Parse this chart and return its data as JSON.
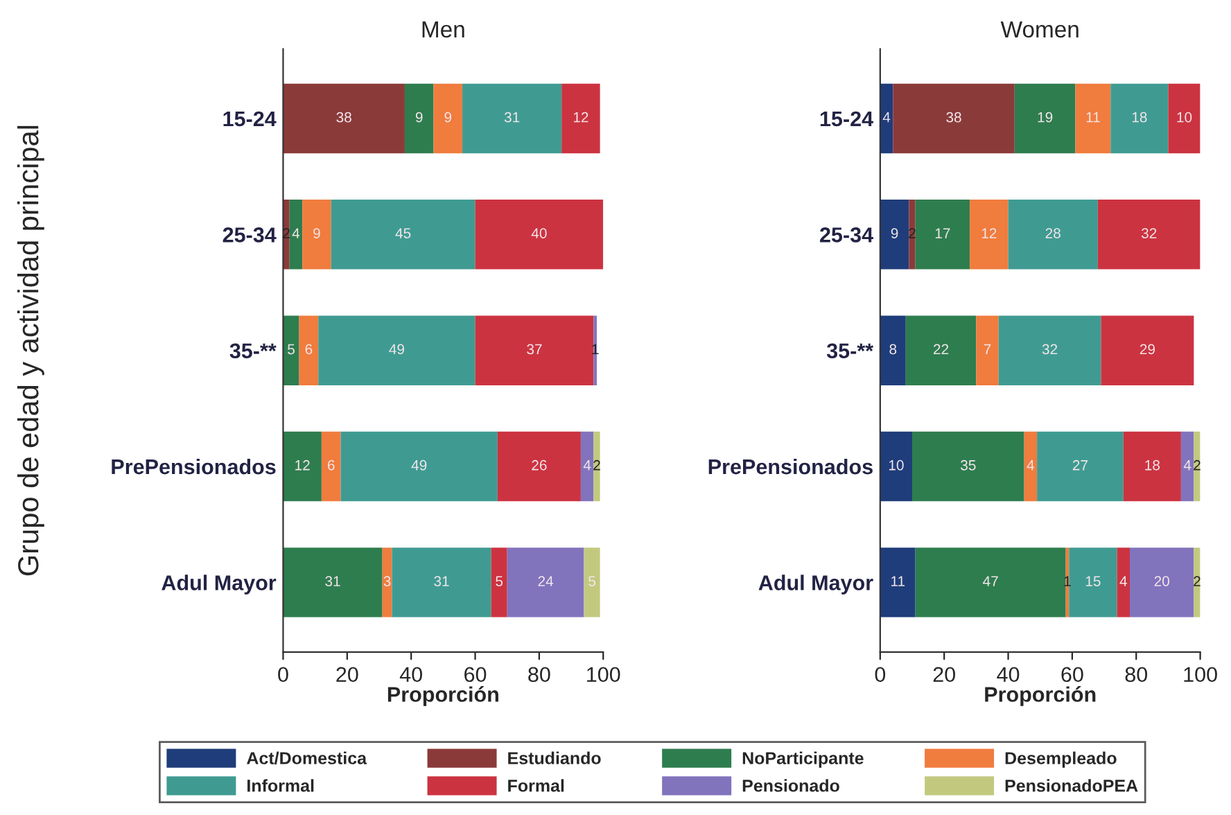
{
  "chart_data": [
    {
      "type": "bar",
      "title": "Men",
      "xlabel": "Proporción",
      "ylabel": "Grupo de edad y actividad principal",
      "orientation": "horizontal",
      "stacked": true,
      "xlim": [
        0,
        100
      ],
      "xticks": [
        0,
        20,
        40,
        60,
        80,
        100
      ],
      "grid": false,
      "categories": [
        "15-24",
        "25-34",
        "35-**",
        "PrePensionados",
        "Adul Mayor"
      ],
      "series": [
        {
          "color": "#8b3a3a",
          "values": [
            38,
            2,
            0,
            0,
            0
          ],
          "value_labels": [
            "38",
            "2",
            null,
            null,
            null
          ]
        },
        {
          "color": "#2e7d4f",
          "values": [
            9,
            4,
            5,
            12,
            31
          ],
          "value_labels": [
            "9",
            "4",
            "5",
            "12",
            "31"
          ]
        },
        {
          "color": "#f07c3e",
          "values": [
            9,
            9,
            6,
            6,
            3
          ],
          "value_labels": [
            "9",
            "9",
            "6",
            "6",
            "3"
          ]
        },
        {
          "color": "#3f9b92",
          "values": [
            31,
            45,
            49,
            49,
            31
          ],
          "value_labels": [
            "31",
            "45",
            "49",
            "49",
            "31"
          ]
        },
        {
          "color": "#cc3340",
          "values": [
            12,
            40,
            37,
            26,
            5
          ],
          "value_labels": [
            "12",
            "40",
            "37",
            "26",
            "5"
          ]
        },
        {
          "color": "#8273bd",
          "values": [
            0,
            0,
            1,
            4,
            24
          ],
          "value_labels": [
            null,
            null,
            "1",
            "4",
            "24"
          ]
        },
        {
          "color": "#c2c97f",
          "values": [
            0,
            0,
            0,
            2,
            5
          ],
          "value_labels": [
            null,
            null,
            null,
            "2",
            "5"
          ]
        }
      ]
    },
    {
      "type": "bar",
      "title": "Women",
      "xlabel": "Proporción",
      "orientation": "horizontal",
      "stacked": true,
      "xlim": [
        0,
        100
      ],
      "xticks": [
        0,
        20,
        40,
        60,
        80,
        100
      ],
      "grid": false,
      "legend": "bottom",
      "categories": [
        "15-24",
        "25-34",
        "35-**",
        "PrePensionados",
        "Adul Mayor"
      ],
      "series": [
        {
          "name": "Act/Domestica",
          "color": "#1f3d7a",
          "values": [
            4,
            9,
            8,
            10,
            11
          ],
          "value_labels": [
            "4",
            "9",
            "8",
            "10",
            "11"
          ]
        },
        {
          "name": "Estudiando",
          "color": "#8b3a3a",
          "values": [
            38,
            2,
            0,
            0,
            0
          ],
          "value_labels": [
            "38",
            "2",
            null,
            null,
            null
          ]
        },
        {
          "name": "NoParticipante",
          "color": "#2e7d4f",
          "values": [
            19,
            17,
            22,
            35,
            47
          ],
          "value_labels": [
            "19",
            "17",
            "22",
            "35",
            "47"
          ]
        },
        {
          "name": "Desempleado",
          "color": "#f07c3e",
          "values": [
            11,
            12,
            7,
            4,
            1
          ],
          "value_labels": [
            "11",
            "12",
            "7",
            "4",
            "1"
          ]
        },
        {
          "name": "Informal",
          "color": "#3f9b92",
          "values": [
            18,
            28,
            32,
            27,
            15
          ],
          "value_labels": [
            "18",
            "28",
            "32",
            "27",
            "15"
          ]
        },
        {
          "name": "Formal",
          "color": "#cc3340",
          "values": [
            10,
            32,
            29,
            18,
            4
          ],
          "value_labels": [
            "10",
            "32",
            "29",
            "18",
            "4"
          ]
        },
        {
          "name": "Pensionado",
          "color": "#8273bd",
          "values": [
            0,
            0,
            0,
            4,
            20
          ],
          "value_labels": [
            null,
            null,
            null,
            "4",
            "20"
          ]
        },
        {
          "name": "PensionadoPEA",
          "color": "#c2c97f",
          "values": [
            0,
            0,
            0,
            2,
            2
          ],
          "value_labels": [
            null,
            null,
            null,
            "2",
            "2"
          ]
        }
      ]
    }
  ]
}
